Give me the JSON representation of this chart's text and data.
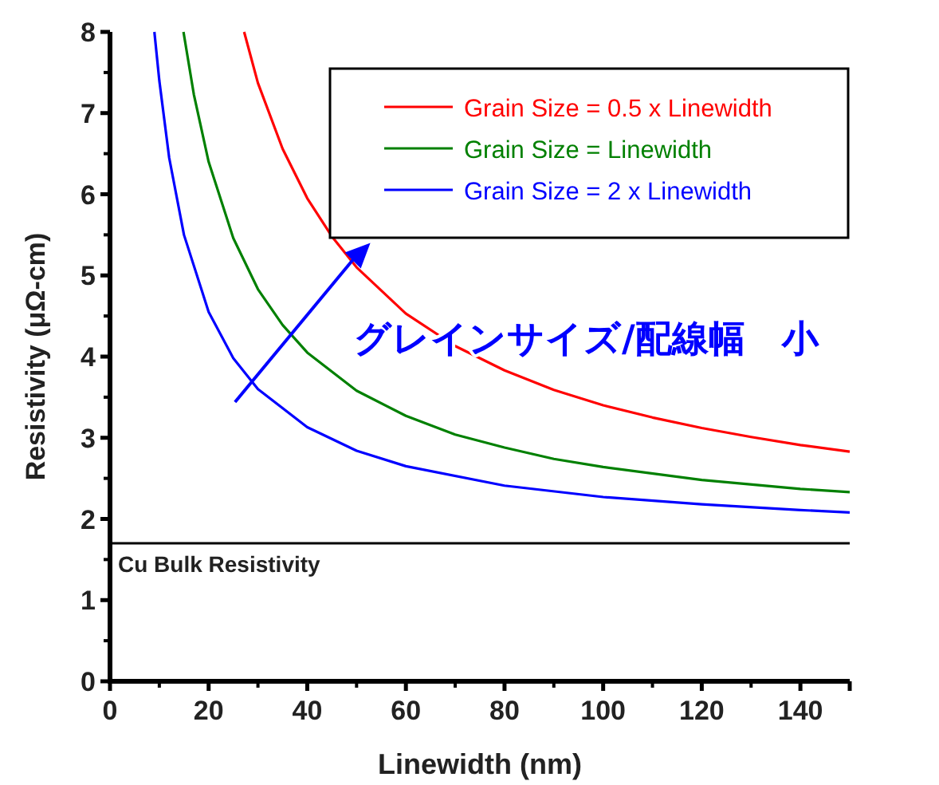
{
  "chart_data": {
    "type": "line",
    "xlabel": "Linewidth (nm)",
    "ylabel": "Resistivity (μΩ-cm)",
    "xlim": [
      0,
      150
    ],
    "xticks": [
      0,
      20,
      40,
      60,
      80,
      100,
      120,
      140
    ],
    "ylim": [
      0,
      8
    ],
    "yticks": [
      0,
      1,
      2,
      3,
      4,
      5,
      6,
      7,
      8
    ],
    "grid": false,
    "legend": "top right",
    "line_style": "solid",
    "marker": "none",
    "series": [
      {
        "name": "Grain Size = 0.5 x Linewidth",
        "color": "#ff0000",
        "x": [
          27.2,
          30,
          35,
          40,
          45,
          50,
          60,
          70,
          80,
          90,
          100,
          110,
          120,
          130,
          140,
          150
        ],
        "values": [
          8,
          7.37,
          6.56,
          5.95,
          5.48,
          5.1,
          4.53,
          4.13,
          3.83,
          3.59,
          3.4,
          3.25,
          3.12,
          3.01,
          2.91,
          2.83
        ]
      },
      {
        "name": "Grain Size = Linewidth",
        "color": "#008000",
        "x": [
          14.9,
          17,
          20,
          25,
          30,
          35,
          40,
          50,
          60,
          70,
          80,
          90,
          100,
          120,
          140,
          150
        ],
        "values": [
          8,
          7.23,
          6.4,
          5.46,
          4.83,
          4.39,
          4.05,
          3.58,
          3.27,
          3.04,
          2.88,
          2.74,
          2.64,
          2.48,
          2.37,
          2.33
        ]
      },
      {
        "name": "Grain Size = 2 x Linewidth",
        "color": "#0000ff",
        "x": [
          9,
          10,
          12,
          15,
          20,
          25,
          30,
          40,
          50,
          60,
          80,
          100,
          120,
          140,
          150
        ],
        "values": [
          8,
          7.4,
          6.45,
          5.5,
          4.55,
          3.98,
          3.6,
          3.13,
          2.84,
          2.65,
          2.41,
          2.27,
          2.18,
          2.11,
          2.08
        ]
      }
    ],
    "ref_lines": [
      {
        "axis": "y",
        "value": 1.7,
        "label": "Cu Bulk Resistivity",
        "color": "#000000"
      }
    ],
    "annotations": [
      "グレインサイズ/配線幅　小"
    ]
  }
}
